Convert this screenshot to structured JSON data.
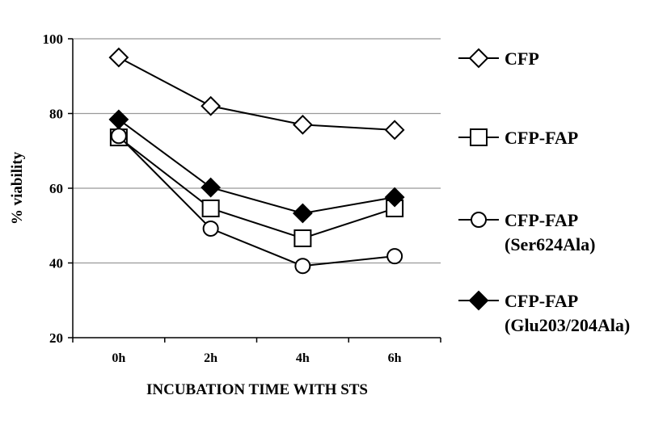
{
  "chart_data": {
    "type": "line",
    "title": "",
    "xlabel": "INCUBATION TIME WITH STS",
    "ylabel": "% viability",
    "categories": [
      "0h",
      "2h",
      "4h",
      "6h"
    ],
    "ylim": [
      20,
      100
    ],
    "yticks": [
      20,
      40,
      60,
      80,
      100
    ],
    "grid": true,
    "legend_position": "right",
    "series": [
      {
        "name": "CFP",
        "name_line2": "",
        "marker": "diamond-open",
        "values": [
          95,
          82,
          77,
          75.6
        ]
      },
      {
        "name": "CFP-FAP",
        "name_line2": "",
        "marker": "square-open",
        "values": [
          73.6,
          54.6,
          46.6,
          54.6
        ]
      },
      {
        "name": "CFP-FAP",
        "name_line2": "(Ser624Ala)",
        "marker": "circle-open",
        "values": [
          74,
          49.2,
          39.2,
          41.8
        ]
      },
      {
        "name": "CFP-FAP",
        "name_line2": "(Glu203/204Ala)",
        "marker": "diamond-filled",
        "values": [
          78.4,
          60.2,
          53.3,
          57.6
        ]
      }
    ]
  }
}
